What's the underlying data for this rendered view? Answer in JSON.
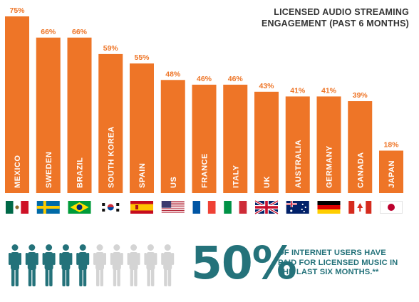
{
  "chart_data": {
    "type": "bar",
    "title": "LICENSED AUDIO STREAMING ENGAGEMENT (PAST 6 MONTHS)",
    "categories": [
      "MEXICO",
      "SWEDEN",
      "BRAZIL",
      "SOUTH KOREA",
      "SPAIN",
      "US",
      "FRANCE",
      "ITALY",
      "UK",
      "AUSTRALIA",
      "GERMANY",
      "CANADA",
      "JAPAN"
    ],
    "values": [
      75,
      66,
      66,
      59,
      55,
      48,
      46,
      46,
      43,
      41,
      41,
      39,
      18
    ],
    "value_labels": [
      "75%",
      "66%",
      "66%",
      "59%",
      "55%",
      "48%",
      "46%",
      "46%",
      "43%",
      "41%",
      "41%",
      "39%",
      "18%"
    ],
    "flags": [
      "mexico-flag",
      "sweden-flag",
      "brazil-flag",
      "south-korea-flag",
      "spain-flag",
      "us-flag",
      "france-flag",
      "italy-flag",
      "uk-flag",
      "australia-flag",
      "germany-flag",
      "canada-flag",
      "japan-flag"
    ],
    "ylim": [
      0,
      75
    ],
    "grid": false,
    "bar_color": "#ee7527",
    "label_color": "#ffffff",
    "value_label_color": "#ee7527"
  },
  "title_lines": [
    "LICENSED AUDIO STREAMING",
    "ENGAGEMENT (PAST 6 MONTHS)"
  ],
  "stat": {
    "value": "50%",
    "text": "OF INTERNET USERS HAVE PAID FOR LICENSED MUSIC IN THE LAST SIX MONTHS.**",
    "people_total": 10,
    "people_highlighted": 5,
    "highlight_color": "#24727a",
    "muted_color": "#d4d4d4"
  }
}
